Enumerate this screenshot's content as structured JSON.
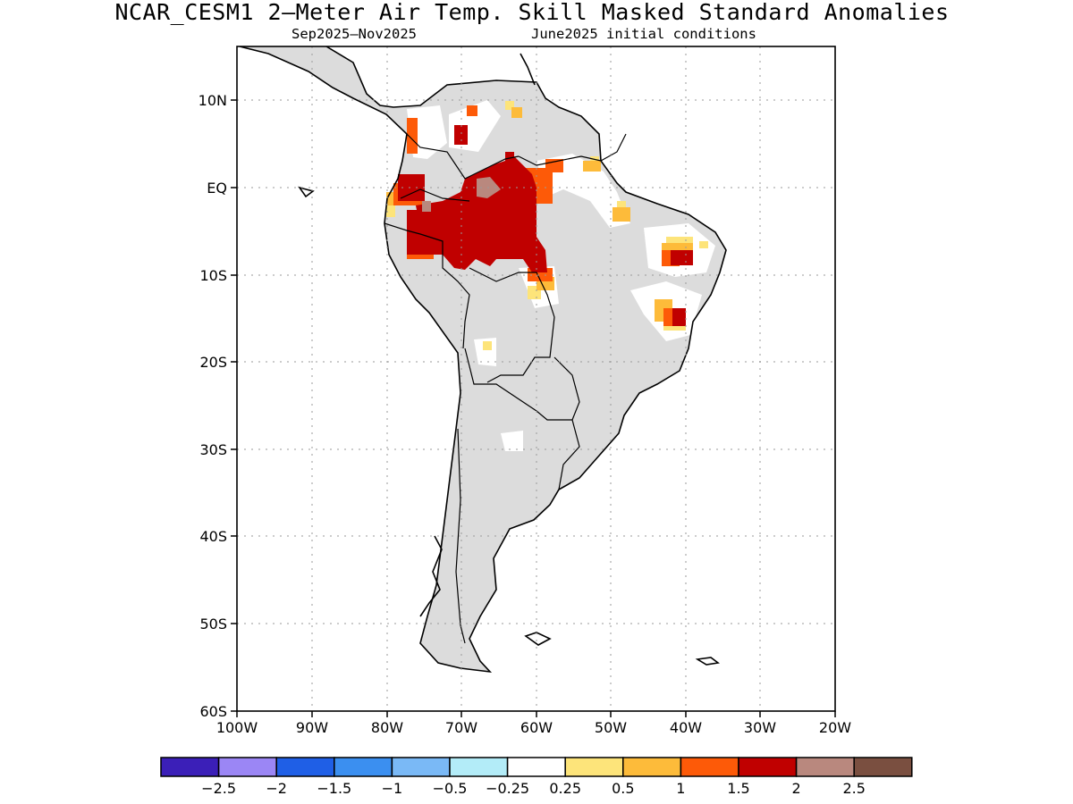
{
  "title": "NCAR_CESM1 2—Meter Air Temp. Skill Masked Standard Anomalies",
  "subtitle_left": "Sep2025—Nov2025",
  "subtitle_right": "June2025 initial conditions",
  "axes": {
    "lat_labels": [
      "10N",
      "EQ",
      "10S",
      "20S",
      "30S",
      "40S",
      "50S",
      "60S"
    ],
    "lon_labels": [
      "100W",
      "90W",
      "80W",
      "70W",
      "60W",
      "50W",
      "40W",
      "30W",
      "20W"
    ]
  },
  "colorbar": {
    "colors": [
      "#3b1fb8",
      "#9b86f5",
      "#1f5fe6",
      "#3b8ff0",
      "#7ab9f6",
      "#b3ecf8",
      "#ffffff",
      "#fde47a",
      "#fdbb3a",
      "#fd5a08",
      "#c00000",
      "#b9887e",
      "#7a4f40"
    ],
    "labels": [
      "−2.5",
      "−2",
      "−1.5",
      "−1",
      "−0.5",
      "−0.25",
      "0.25",
      "0.5",
      "1",
      "1.5",
      "2",
      "2.5"
    ]
  },
  "legend_colors": {
    "masked_land": "#dcdcdc",
    "ocean": "#ffffff",
    "coastline": "#000000",
    "gridline": "#9a9a9a"
  }
}
